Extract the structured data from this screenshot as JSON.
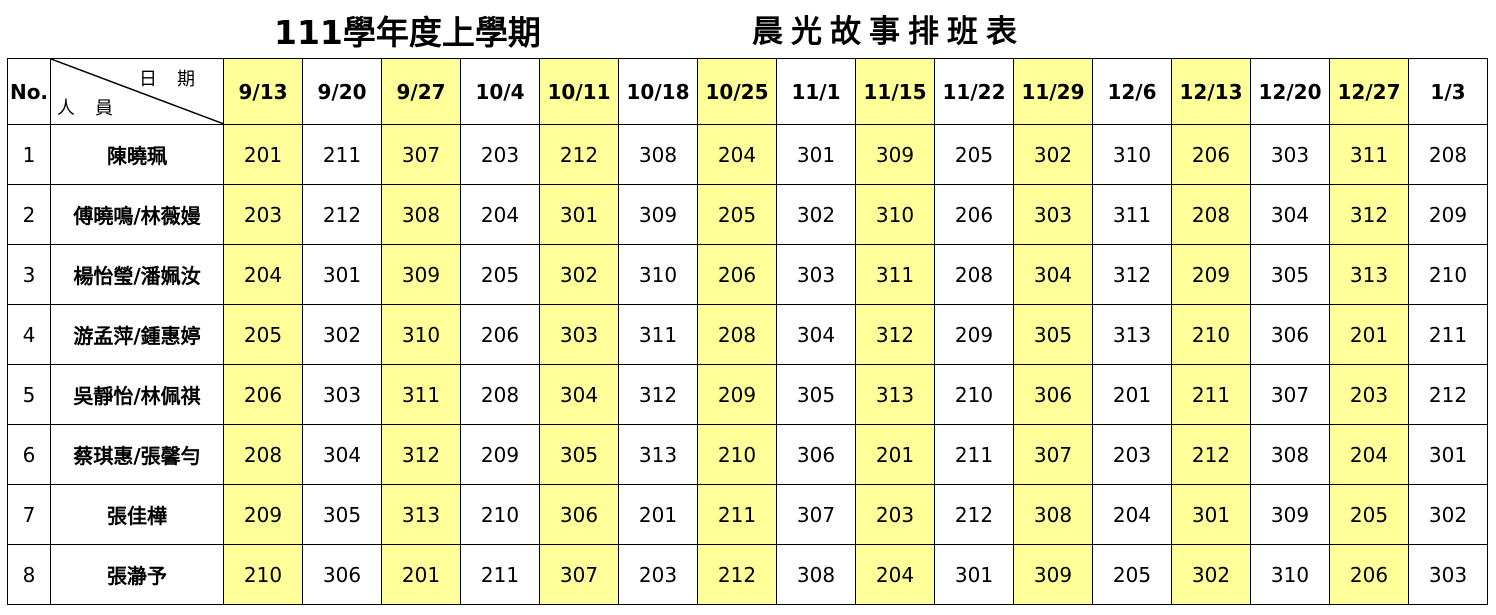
{
  "title": {
    "left": "111學年度上學期",
    "right": "晨光故事排班表"
  },
  "header": {
    "no_label": "No.",
    "diag_top": "日期",
    "diag_bottom": "人員"
  },
  "dates": [
    "9/13",
    "9/20",
    "9/27",
    "10/4",
    "10/11",
    "10/18",
    "10/25",
    "11/1",
    "11/15",
    "11/22",
    "11/29",
    "12/6",
    "12/13",
    "12/20",
    "12/27",
    "1/3"
  ],
  "rows": [
    {
      "no": "1",
      "name": "陳曉珮",
      "cells": [
        "201",
        "211",
        "307",
        "203",
        "212",
        "308",
        "204",
        "301",
        "309",
        "205",
        "302",
        "310",
        "206",
        "303",
        "311",
        "208"
      ]
    },
    {
      "no": "2",
      "name": "傅曉鳴/林薇嫚",
      "cells": [
        "203",
        "212",
        "308",
        "204",
        "301",
        "309",
        "205",
        "302",
        "310",
        "206",
        "303",
        "311",
        "208",
        "304",
        "312",
        "209"
      ]
    },
    {
      "no": "3",
      "name": "楊怡瑩/潘姵汝",
      "cells": [
        "204",
        "301",
        "309",
        "205",
        "302",
        "310",
        "206",
        "303",
        "311",
        "208",
        "304",
        "312",
        "209",
        "305",
        "313",
        "210"
      ]
    },
    {
      "no": "4",
      "name": "游孟萍/鍾惠婷",
      "cells": [
        "205",
        "302",
        "310",
        "206",
        "303",
        "311",
        "208",
        "304",
        "312",
        "209",
        "305",
        "313",
        "210",
        "306",
        "201",
        "211"
      ]
    },
    {
      "no": "5",
      "name": "吳靜怡/林佩祺",
      "cells": [
        "206",
        "303",
        "311",
        "208",
        "304",
        "312",
        "209",
        "305",
        "313",
        "210",
        "306",
        "201",
        "211",
        "307",
        "203",
        "212"
      ]
    },
    {
      "no": "6",
      "name": "蔡琪惠/張馨勻",
      "cells": [
        "208",
        "304",
        "312",
        "209",
        "305",
        "313",
        "210",
        "306",
        "201",
        "211",
        "307",
        "203",
        "212",
        "308",
        "204",
        "301"
      ]
    },
    {
      "no": "7",
      "name": "張佳樺",
      "cells": [
        "209",
        "305",
        "313",
        "210",
        "306",
        "201",
        "211",
        "307",
        "203",
        "212",
        "308",
        "204",
        "301",
        "309",
        "205",
        "302"
      ]
    },
    {
      "no": "8",
      "name": "張瀞予",
      "cells": [
        "210",
        "306",
        "201",
        "211",
        "307",
        "203",
        "212",
        "308",
        "204",
        "301",
        "309",
        "205",
        "302",
        "310",
        "206",
        "303"
      ]
    }
  ],
  "colors": {
    "highlight": "#ffff99",
    "border": "#000000"
  }
}
